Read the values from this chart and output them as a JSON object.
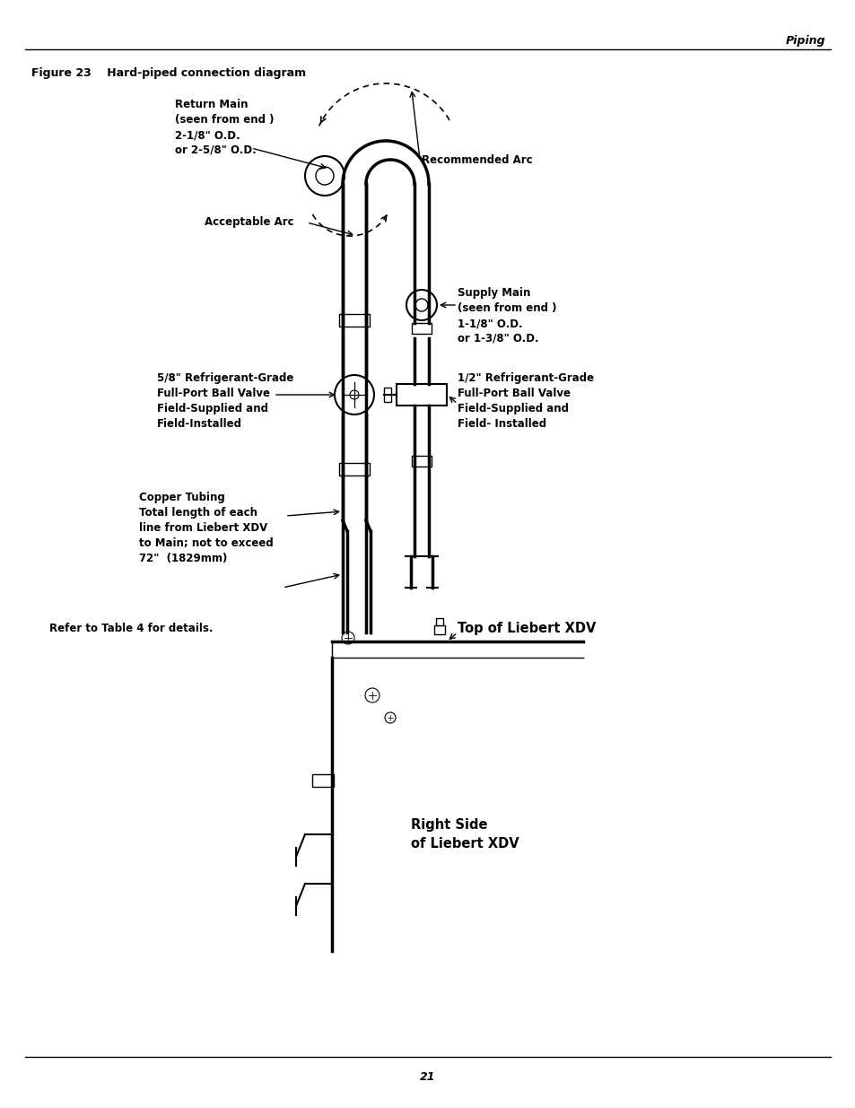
{
  "title_header": "Piping",
  "figure_label": "Figure 23    Hard-piped connection diagram",
  "page_number": "21",
  "background_color": "#ffffff",
  "line_color": "#000000",
  "annotations": {
    "return_main": "Return Main\n(seen from end )\n2-1/8\" O.D.\nor 2-5/8\" O.D.",
    "recommended_arc": "Recommended Arc",
    "acceptable_arc": "Acceptable Arc",
    "supply_main": "Supply Main\n(seen from end )\n1-1/8\" O.D.\nor 1-3/8\" O.D.",
    "ball_valve_large": "5/8\" Refrigerant-Grade\nFull-Port Ball Valve\nField-Supplied and\nField-Installed",
    "ball_valve_small": "1/2\" Refrigerant-Grade\nFull-Port Ball Valve\nField-Supplied and\nField- Installed",
    "copper_tubing": "Copper Tubing\nTotal length of each\nline from Liebert XDV\nto Main; not to exceed\n72\"  (1829mm)",
    "refer_table": "Refer to Table 4 for details.",
    "top_liebert": "Top of Liebert XDV",
    "right_side": "Right Side\nof Liebert XDV"
  }
}
